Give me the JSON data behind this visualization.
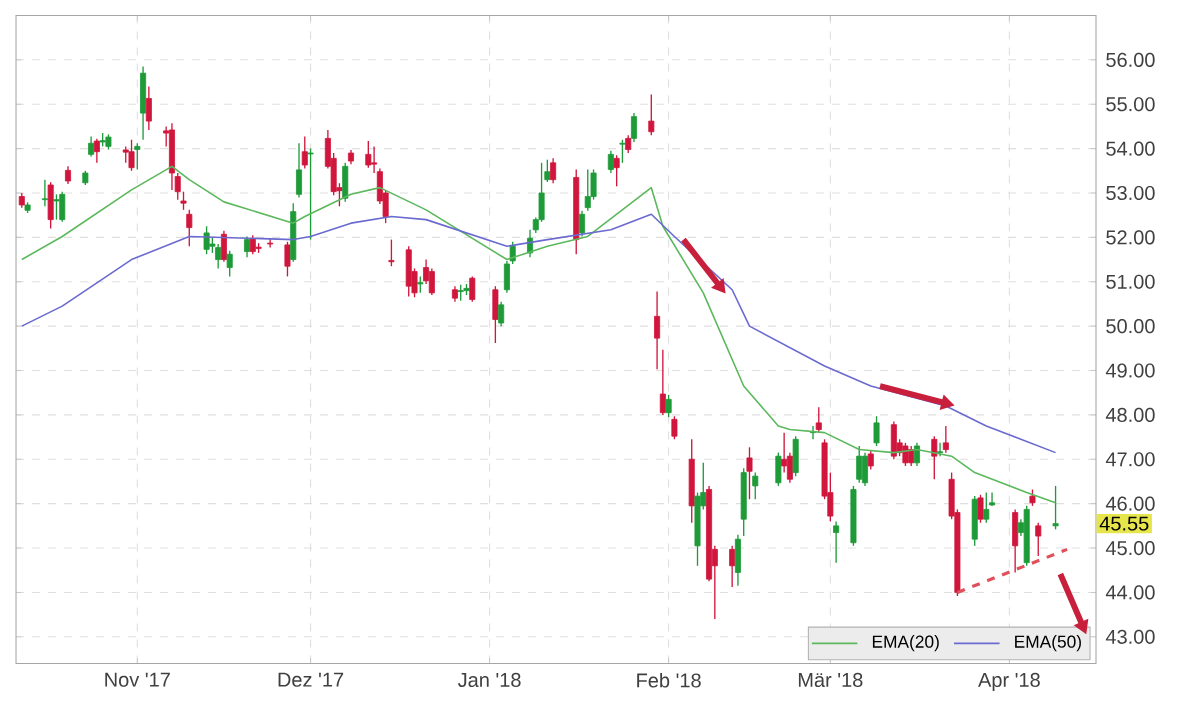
{
  "chart_data": {
    "type": "candlestick",
    "x": [
      "2017-10-12",
      "2017-10-13",
      "2017-10-16",
      "2017-10-17",
      "2017-10-18",
      "2017-10-19",
      "2017-10-20",
      "2017-10-23",
      "2017-10-24",
      "2017-10-25",
      "2017-10-26",
      "2017-10-27",
      "2017-10-30",
      "2017-10-31",
      "2017-11-01",
      "2017-11-02",
      "2017-11-03",
      "2017-11-06",
      "2017-11-07",
      "2017-11-08",
      "2017-11-09",
      "2017-11-10",
      "2017-11-13",
      "2017-11-14",
      "2017-11-15",
      "2017-11-16",
      "2017-11-17",
      "2017-11-20",
      "2017-11-21",
      "2017-11-22",
      "2017-11-24",
      "2017-11-27",
      "2017-11-28",
      "2017-11-29",
      "2017-11-30",
      "2017-12-01",
      "2017-12-04",
      "2017-12-05",
      "2017-12-06",
      "2017-12-07",
      "2017-12-08",
      "2017-12-11",
      "2017-12-12",
      "2017-12-13",
      "2017-12-14",
      "2017-12-15",
      "2017-12-18",
      "2017-12-19",
      "2017-12-20",
      "2017-12-21",
      "2017-12-22",
      "2017-12-26",
      "2017-12-27",
      "2017-12-28",
      "2017-12-29",
      "2018-01-02",
      "2018-01-03",
      "2018-01-04",
      "2018-01-05",
      "2018-01-08",
      "2018-01-09",
      "2018-01-10",
      "2018-01-11",
      "2018-01-12",
      "2018-01-16",
      "2018-01-17",
      "2018-01-18",
      "2018-01-19",
      "2018-01-22",
      "2018-01-23",
      "2018-01-24",
      "2018-01-25",
      "2018-01-26",
      "2018-01-29",
      "2018-01-30",
      "2018-01-31",
      "2018-02-01",
      "2018-02-02",
      "2018-02-05",
      "2018-02-06",
      "2018-02-07",
      "2018-02-08",
      "2018-02-09",
      "2018-02-12",
      "2018-02-13",
      "2018-02-14",
      "2018-02-15",
      "2018-02-16",
      "2018-02-20",
      "2018-02-21",
      "2018-02-22",
      "2018-02-23",
      "2018-02-26",
      "2018-02-27",
      "2018-02-28",
      "2018-03-01",
      "2018-03-02",
      "2018-03-05",
      "2018-03-06",
      "2018-03-07",
      "2018-03-08",
      "2018-03-09",
      "2018-03-12",
      "2018-03-13",
      "2018-03-14",
      "2018-03-15",
      "2018-03-16",
      "2018-03-19",
      "2018-03-20",
      "2018-03-21",
      "2018-03-22",
      "2018-03-23",
      "2018-03-26",
      "2018-03-27",
      "2018-03-28",
      "2018-03-29",
      "2018-04-02",
      "2018-04-03",
      "2018-04-04",
      "2018-04-05",
      "2018-04-06",
      "2018-04-09"
    ],
    "ohlc": [
      [
        52.92,
        53.0,
        52.67,
        52.73
      ],
      [
        52.61,
        52.79,
        52.55,
        52.73
      ],
      [
        52.85,
        53.3,
        52.7,
        52.87
      ],
      [
        53.18,
        53.24,
        52.2,
        52.4
      ],
      [
        52.82,
        52.97,
        52.4,
        52.85
      ],
      [
        52.4,
        53.03,
        52.35,
        52.97
      ],
      [
        53.51,
        53.6,
        53.2,
        53.27
      ],
      [
        53.23,
        53.5,
        53.18,
        53.45
      ],
      [
        53.87,
        54.27,
        53.82,
        54.12
      ],
      [
        54.17,
        54.22,
        53.68,
        53.93
      ],
      [
        54.15,
        54.35,
        54.05,
        54.18
      ],
      [
        54.05,
        54.32,
        53.98,
        54.26
      ],
      [
        53.97,
        54.05,
        53.68,
        53.92
      ],
      [
        53.93,
        54.2,
        53.5,
        53.57
      ],
      [
        53.98,
        54.12,
        53.53,
        54.05
      ],
      [
        54.8,
        55.85,
        54.2,
        55.7
      ],
      [
        55.13,
        55.4,
        54.42,
        54.62
      ],
      [
        54.4,
        54.5,
        54.05,
        54.35
      ],
      [
        54.42,
        54.57,
        53.07,
        53.45
      ],
      [
        53.37,
        53.45,
        52.85,
        53.03
      ],
      [
        52.82,
        53.03,
        52.62,
        52.77
      ],
      [
        52.52,
        52.62,
        51.8,
        52.22
      ],
      [
        51.73,
        52.25,
        51.62,
        52.1
      ],
      [
        51.8,
        52.0,
        51.65,
        51.85
      ],
      [
        51.5,
        51.85,
        51.3,
        51.77
      ],
      [
        52.07,
        52.15,
        51.45,
        51.5
      ],
      [
        51.32,
        51.7,
        51.12,
        51.62
      ],
      [
        51.68,
        52.02,
        51.55,
        51.95
      ],
      [
        51.98,
        52.05,
        51.62,
        51.68
      ],
      [
        51.78,
        51.87,
        51.65,
        51.75
      ],
      [
        51.87,
        51.98,
        51.77,
        51.85
      ],
      [
        51.83,
        51.9,
        51.12,
        51.35
      ],
      [
        51.5,
        52.77,
        51.45,
        52.58
      ],
      [
        52.97,
        54.12,
        52.9,
        53.52
      ],
      [
        53.93,
        54.27,
        53.55,
        53.63
      ],
      [
        53.88,
        54.0,
        51.95,
        53.9
      ],
      [
        54.23,
        54.42,
        53.55,
        53.6
      ],
      [
        53.78,
        53.9,
        52.95,
        53.03
      ],
      [
        53.12,
        53.22,
        52.7,
        53.05
      ],
      [
        52.88,
        53.68,
        52.8,
        53.6
      ],
      [
        53.9,
        53.97,
        53.65,
        53.72
      ],
      [
        53.87,
        54.17,
        53.57,
        53.63
      ],
      [
        53.68,
        54.05,
        53.45,
        53.65
      ],
      [
        53.48,
        53.55,
        52.75,
        52.82
      ],
      [
        53.0,
        53.05,
        52.32,
        52.47
      ],
      [
        51.48,
        51.95,
        51.35,
        51.45
      ],
      [
        51.72,
        51.8,
        50.67,
        50.9
      ],
      [
        51.23,
        51.3,
        50.65,
        50.75
      ],
      [
        50.95,
        51.12,
        50.75,
        50.98
      ],
      [
        51.32,
        51.5,
        50.95,
        51.02
      ],
      [
        51.23,
        51.3,
        50.7,
        50.75
      ],
      [
        50.82,
        50.9,
        50.55,
        50.63
      ],
      [
        50.78,
        50.93,
        50.57,
        50.8
      ],
      [
        50.8,
        50.95,
        50.7,
        50.85
      ],
      [
        51.08,
        51.12,
        50.55,
        50.6
      ],
      [
        50.82,
        50.9,
        49.62,
        50.15
      ],
      [
        50.07,
        50.55,
        50.0,
        50.48
      ],
      [
        50.82,
        51.47,
        50.75,
        51.4
      ],
      [
        51.47,
        51.9,
        51.4,
        51.8
      ],
      [
        51.65,
        52.17,
        51.55,
        51.98
      ],
      [
        52.17,
        52.45,
        52.1,
        52.4
      ],
      [
        52.4,
        53.68,
        52.35,
        53.0
      ],
      [
        53.3,
        53.75,
        53.25,
        53.48
      ],
      [
        53.68,
        53.78,
        53.22,
        53.3
      ],
      [
        53.35,
        53.53,
        51.62,
        51.95
      ],
      [
        52.1,
        52.6,
        52.02,
        52.52
      ],
      [
        52.67,
        53.53,
        52.6,
        52.92
      ],
      [
        52.92,
        53.53,
        52.85,
        53.45
      ],
      [
        53.53,
        53.95,
        53.45,
        53.87
      ],
      [
        53.78,
        53.85,
        53.15,
        53.57
      ],
      [
        54.1,
        54.2,
        53.68,
        54.12
      ],
      [
        54.23,
        54.3,
        53.9,
        53.98
      ],
      [
        54.23,
        54.8,
        54.15,
        54.72
      ],
      [
        54.62,
        55.22,
        54.3,
        54.38
      ],
      [
        50.22,
        50.78,
        49.03,
        49.73
      ],
      [
        48.47,
        49.47,
        48.0,
        48.05
      ],
      [
        48.05,
        48.45,
        47.95,
        48.35
      ],
      [
        47.9,
        47.97,
        47.45,
        47.52
      ],
      [
        47.0,
        47.45,
        45.57,
        45.95
      ],
      [
        45.05,
        46.25,
        44.6,
        46.17
      ],
      [
        45.95,
        46.92,
        45.87,
        46.25
      ],
      [
        46.32,
        46.4,
        44.25,
        44.3
      ],
      [
        44.97,
        45.05,
        43.4,
        44.6
      ],
      [
        44.97,
        45.05,
        44.12,
        44.6
      ],
      [
        44.45,
        45.3,
        44.15,
        45.2
      ],
      [
        45.65,
        46.8,
        45.27,
        46.7
      ],
      [
        47.03,
        47.27,
        46.1,
        46.73
      ],
      [
        46.4,
        46.7,
        46.1,
        46.62
      ],
      [
        46.47,
        47.15,
        46.4,
        47.07
      ],
      [
        47.0,
        47.6,
        46.7,
        46.85
      ],
      [
        47.07,
        47.15,
        46.47,
        46.55
      ],
      [
        46.7,
        47.52,
        46.62,
        47.45
      ],
      [
        47.6,
        47.75,
        47.45,
        47.62
      ],
      [
        47.82,
        48.17,
        47.6,
        47.67
      ],
      [
        47.37,
        47.45,
        46.1,
        46.17
      ],
      [
        46.25,
        46.7,
        45.6,
        45.72
      ],
      [
        45.35,
        45.6,
        44.67,
        45.5
      ],
      [
        45.12,
        46.4,
        45.05,
        46.32
      ],
      [
        46.55,
        47.3,
        46.47,
        47.07
      ],
      [
        46.47,
        47.15,
        46.4,
        47.07
      ],
      [
        47.12,
        47.2,
        46.77,
        46.85
      ],
      [
        47.37,
        47.97,
        47.3,
        47.82
      ],
      [
        47.78,
        47.85,
        47.0,
        47.07
      ],
      [
        47.37,
        47.45,
        47.07,
        47.15
      ],
      [
        47.3,
        47.37,
        46.85,
        46.92
      ],
      [
        47.22,
        47.3,
        46.85,
        46.92
      ],
      [
        46.92,
        47.37,
        46.85,
        47.3
      ],
      [
        47.45,
        47.52,
        46.55,
        47.07
      ],
      [
        47.15,
        47.37,
        47.07,
        47.17
      ],
      [
        47.37,
        47.75,
        47.15,
        47.22
      ],
      [
        46.55,
        46.7,
        45.65,
        45.72
      ],
      [
        45.8,
        45.87,
        43.92,
        44.0
      ],
      [
        45.2,
        46.17,
        45.05,
        46.1
      ],
      [
        46.13,
        46.2,
        45.57,
        45.65
      ],
      [
        45.65,
        46.25,
        45.57,
        45.87
      ],
      [
        45.97,
        46.25,
        45.95,
        46.02
      ],
      [
        45.8,
        45.87,
        44.45,
        45.05
      ],
      [
        45.35,
        45.65,
        45.27,
        45.57
      ],
      [
        44.67,
        45.95,
        44.6,
        45.87
      ],
      [
        46.17,
        46.32,
        45.95,
        46.02
      ],
      [
        45.5,
        45.57,
        44.82,
        45.27
      ],
      [
        45.5,
        46.4,
        45.42,
        45.55
      ]
    ],
    "colors": [
      "#d0163c",
      "#1e9b38",
      "#1e9b38",
      "#d0163c",
      "#1e9b38",
      "#1e9b38",
      "#d0163c",
      "#1e9b38",
      "#1e9b38",
      "#d0163c",
      "#1e9b38",
      "#1e9b38",
      "#d0163c",
      "#d0163c",
      "#1e9b38",
      "#1e9b38",
      "#d0163c",
      "#d0163c",
      "#d0163c",
      "#d0163c",
      "#d0163c",
      "#d0163c",
      "#1e9b38",
      "#1e9b38",
      "#1e9b38",
      "#d0163c",
      "#1e9b38",
      "#1e9b38",
      "#d0163c",
      "#d0163c",
      "#d0163c",
      "#d0163c",
      "#1e9b38",
      "#1e9b38",
      "#d0163c",
      "#1e9b38",
      "#d0163c",
      "#d0163c",
      "#d0163c",
      "#1e9b38",
      "#d0163c",
      "#d0163c",
      "#d0163c",
      "#d0163c",
      "#d0163c",
      "#d0163c",
      "#d0163c",
      "#d0163c",
      "#1e9b38",
      "#d0163c",
      "#d0163c",
      "#d0163c",
      "#1e9b38",
      "#1e9b38",
      "#d0163c",
      "#d0163c",
      "#1e9b38",
      "#1e9b38",
      "#1e9b38",
      "#1e9b38",
      "#1e9b38",
      "#1e9b38",
      "#1e9b38",
      "#d0163c",
      "#d0163c",
      "#1e9b38",
      "#1e9b38",
      "#1e9b38",
      "#1e9b38",
      "#d0163c",
      "#1e9b38",
      "#d0163c",
      "#1e9b38",
      "#d0163c",
      "#d0163c",
      "#d0163c",
      "#1e9b38",
      "#d0163c",
      "#d0163c",
      "#1e9b38",
      "#1e9b38",
      "#d0163c",
      "#d0163c",
      "#d0163c",
      "#1e9b38",
      "#1e9b38",
      "#d0163c",
      "#1e9b38",
      "#1e9b38",
      "#d0163c",
      "#d0163c",
      "#1e9b38",
      "#1e9b38",
      "#d0163c",
      "#d0163c",
      "#d0163c",
      "#1e9b38",
      "#1e9b38",
      "#1e9b38",
      "#1e9b38",
      "#d0163c",
      "#1e9b38",
      "#d0163c",
      "#d0163c",
      "#d0163c",
      "#d0163c",
      "#1e9b38",
      "#d0163c",
      "#1e9b38",
      "#d0163c",
      "#d0163c",
      "#d0163c",
      "#1e9b38",
      "#d0163c",
      "#1e9b38",
      "#1e9b38",
      "#d0163c",
      "#1e9b38",
      "#1e9b38",
      "#d0163c",
      "#d0163c",
      "#1e9b38"
    ],
    "series": [
      {
        "name": "EMA(20)",
        "type": "line",
        "color": "#5cb85c",
        "x": [
          "2017-10-12",
          "2017-10-19",
          "2017-10-31",
          "2017-11-07",
          "2017-11-10",
          "2017-11-16",
          "2017-11-28",
          "2017-11-30",
          "2017-12-08",
          "2017-12-13",
          "2017-12-21",
          "2018-01-04",
          "2018-01-11",
          "2018-01-18",
          "2018-01-29",
          "2018-01-31",
          "2018-02-07",
          "2018-02-14",
          "2018-02-20",
          "2018-02-22",
          "2018-02-28",
          "2018-03-06",
          "2018-03-12",
          "2018-03-16",
          "2018-03-22",
          "2018-03-26",
          "2018-04-04",
          "2018-04-09"
        ],
        "values": [
          51.5,
          52.02,
          53.07,
          53.6,
          53.3,
          52.8,
          52.32,
          52.47,
          52.97,
          53.12,
          52.62,
          51.5,
          51.8,
          52.02,
          53.12,
          52.25,
          50.75,
          48.65,
          47.75,
          47.67,
          47.6,
          47.22,
          47.15,
          47.22,
          47.07,
          46.7,
          46.25,
          46.02
        ]
      },
      {
        "name": "EMA(50)",
        "type": "line",
        "color": "#6a6ad0",
        "x": [
          "2017-10-12",
          "2017-10-19",
          "2017-10-31",
          "2017-11-10",
          "2017-11-28",
          "2017-12-01",
          "2017-12-08",
          "2017-12-15",
          "2017-12-21",
          "2018-01-04",
          "2018-01-11",
          "2018-01-22",
          "2018-01-29",
          "2018-02-02",
          "2018-02-12",
          "2018-02-15",
          "2018-02-28",
          "2018-03-08",
          "2018-03-21",
          "2018-03-28",
          "2018-04-09"
        ],
        "values": [
          50.0,
          50.45,
          51.5,
          52.02,
          51.95,
          52.02,
          52.32,
          52.47,
          52.4,
          51.8,
          51.95,
          52.17,
          52.52,
          52.02,
          50.82,
          50.0,
          49.1,
          48.65,
          48.2,
          47.75,
          47.15
        ]
      },
      {
        "type": "line",
        "color": "#e0505a",
        "line_style": "dashed",
        "x": [
          "2018-03-23",
          "2018-04-11"
        ],
        "values": [
          44.0,
          44.97
        ]
      }
    ],
    "annotations": [
      {
        "text": "45.55",
        "y": 45.55
      }
    ],
    "xlim": [
      "2017-10-11",
      "2018-04-16"
    ],
    "xticks": [
      {
        "value": "2017-11-01",
        "label": "Nov '17"
      },
      {
        "value": "2017-12-01",
        "label": "Dez '17"
      },
      {
        "value": "2018-01-01",
        "label": "Jan '18"
      },
      {
        "value": "2018-02-01",
        "label": "Feb '18"
      },
      {
        "value": "2018-03-01",
        "label": "Mär '18"
      },
      {
        "value": "2018-04-01",
        "label": "Apr '18"
      }
    ],
    "ylim": [
      42.4,
      57.0
    ],
    "yticks": [
      {
        "value": 43,
        "label": "43.00"
      },
      {
        "value": 44,
        "label": "44.00"
      },
      {
        "value": 45,
        "label": "45.00"
      },
      {
        "value": 46,
        "label": "46.00"
      },
      {
        "value": 47,
        "label": "47.00"
      },
      {
        "value": 48,
        "label": "48.00"
      },
      {
        "value": 49,
        "label": "49.00"
      },
      {
        "value": 50,
        "label": "50.00"
      },
      {
        "value": 51,
        "label": "51.00"
      },
      {
        "value": 52,
        "label": "52.00"
      },
      {
        "value": 53,
        "label": "53.00"
      },
      {
        "value": 54,
        "label": "54.00"
      },
      {
        "value": 55,
        "label": "55.00"
      },
      {
        "value": 56,
        "label": "56.00"
      }
    ],
    "grid": true,
    "legend": "bottom right"
  }
}
